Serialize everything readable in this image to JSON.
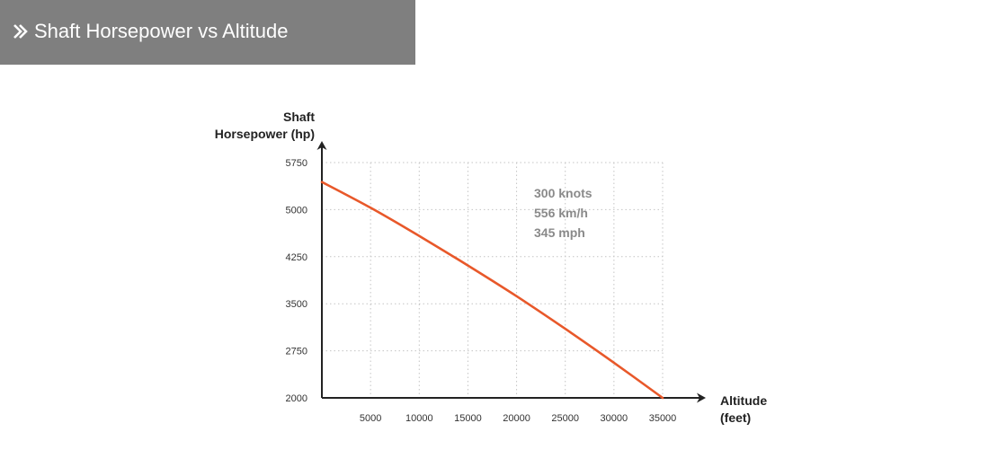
{
  "header": {
    "title": "Shaft Horsepower vs Altitude",
    "icon": "double-chevron-right-icon",
    "background": "#7f7f7f"
  },
  "chart_data": {
    "type": "line",
    "title": "Shaft Horsepower vs Altitude",
    "ylabel_lines": [
      "Shaft",
      "Horsepower (hp)"
    ],
    "xlabel_lines": [
      "Altitude",
      "(feet)"
    ],
    "x_ticks": [
      5000,
      10000,
      15000,
      20000,
      25000,
      30000,
      35000
    ],
    "y_ticks": [
      2000,
      2750,
      3500,
      4250,
      5000,
      5750
    ],
    "xlim": [
      0,
      35000
    ],
    "ylim": [
      2000,
      5750
    ],
    "grid": true,
    "annotations": [
      "300 knots",
      "556 km/h",
      "345 mph"
    ],
    "series": [
      {
        "color": "#e8582a",
        "x": [
          0,
          5000,
          10000,
          15000,
          20000,
          25000,
          30000,
          35000
        ],
        "y": [
          5440,
          5030,
          4580,
          4110,
          3620,
          3100,
          2560,
          2000
        ]
      }
    ]
  }
}
